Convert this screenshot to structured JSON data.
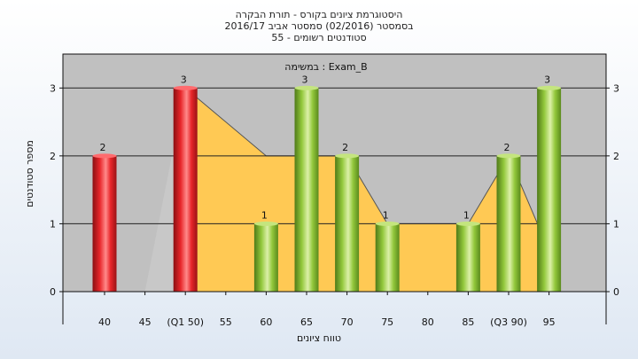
{
  "title_lines": [
    "היסטוגרמת ציונים בקורס - תורת הבקרה",
    "בסמסטר  (02/2016)  סמסטר אביב 2016/17",
    "סטודנטים רשומים - 55"
  ],
  "chart_data": {
    "type": "bar",
    "subtitle": "במשימה : Exam_B",
    "xlabel": "טווח ציונים",
    "ylabel": "מספר סטודנטים",
    "x_ticks": [
      "40",
      "45",
      "(Q1 50)",
      "55",
      "60",
      "65",
      "70",
      "75",
      "80",
      "85",
      "(Q3 90)",
      "95"
    ],
    "ylim": [
      0,
      3.5
    ],
    "y_ticks": [
      0,
      1,
      2,
      3
    ],
    "grid": true,
    "bars": [
      {
        "x": 40,
        "value": 2,
        "color": "red"
      },
      {
        "x": 50,
        "value": 3,
        "color": "red"
      },
      {
        "x": 60,
        "value": 1,
        "color": "green"
      },
      {
        "x": 65,
        "value": 3,
        "color": "green"
      },
      {
        "x": 70,
        "value": 2,
        "color": "green"
      },
      {
        "x": 75,
        "value": 1,
        "color": "green"
      },
      {
        "x": 85,
        "value": 1,
        "color": "green"
      },
      {
        "x": 90,
        "value": 2,
        "color": "green"
      },
      {
        "x": 95,
        "value": 3,
        "color": "green"
      }
    ],
    "area_series": {
      "x": [
        45,
        50,
        60,
        70,
        75,
        85,
        90,
        95
      ],
      "y": [
        0,
        3,
        2,
        2,
        1,
        1,
        2,
        0.6
      ]
    },
    "colors": {
      "red": "#e8262a",
      "green": "#93c83c",
      "area": "#ffc954",
      "area_left": "#c8c8c8",
      "plot_bg": "#c0c0c0"
    }
  }
}
